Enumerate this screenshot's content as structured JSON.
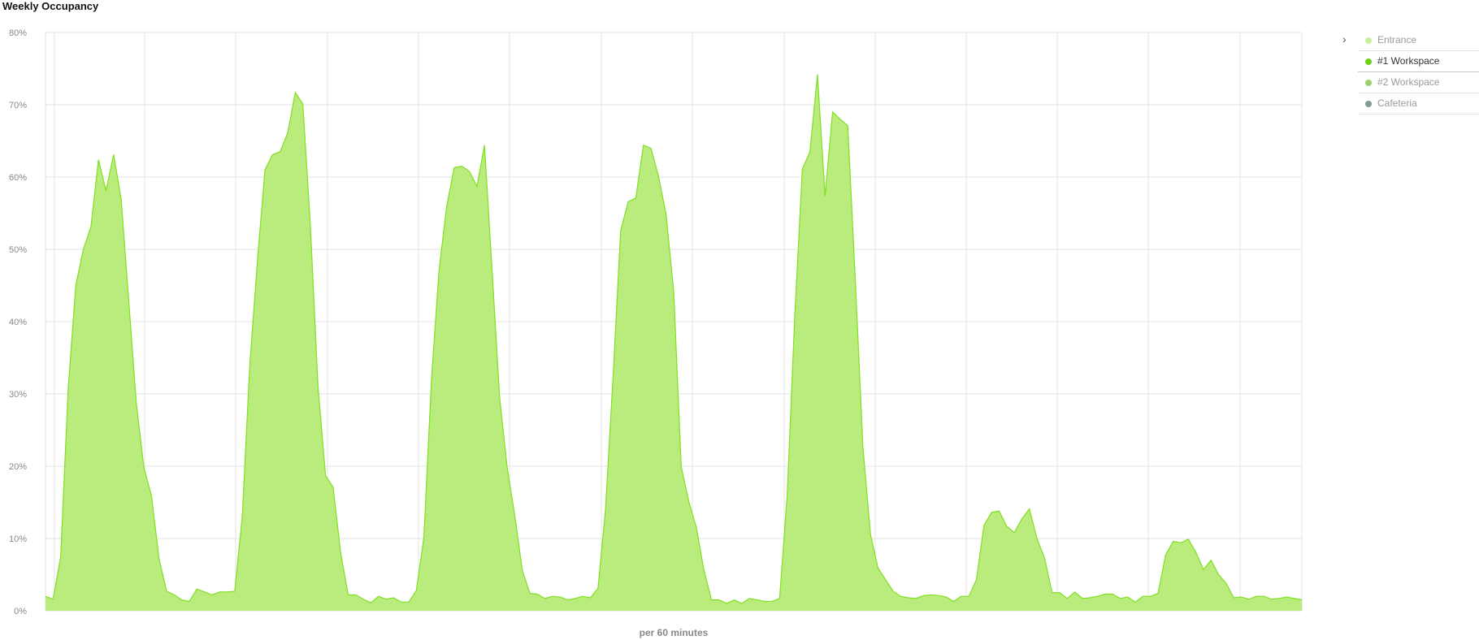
{
  "title": "Weekly Occupancy",
  "legend": {
    "items": [
      {
        "label": "Entrance",
        "color": "#c5ef9c",
        "active": false
      },
      {
        "label": "#1 Workspace",
        "color": "#6dd116",
        "active": true
      },
      {
        "label": "#2 Workspace",
        "color": "#9bd26c",
        "active": false
      },
      {
        "label": "Cafeteria",
        "color": "#879a8c",
        "active": false
      }
    ]
  },
  "chart_data": {
    "type": "area",
    "title": "Weekly Occupancy",
    "xlabel": "per 60 minutes",
    "ylabel": "",
    "ylim": [
      0,
      80
    ],
    "yticks": [
      "0%",
      "10%",
      "20%",
      "30%",
      "40%",
      "50%",
      "60%",
      "70%",
      "80%"
    ],
    "grid": true,
    "legend_position": "top-right",
    "series": [
      {
        "name": "#1 Workspace",
        "color": "#7fe021",
        "fill": "#b9ec7d",
        "values": [
          2.0,
          1.6,
          7.4,
          30.7,
          45.0,
          50.0,
          53.1,
          62.4,
          58.1,
          63.1,
          56.9,
          42.8,
          28.7,
          19.8,
          15.9,
          7.2,
          2.7,
          2.2,
          1.5,
          1.3,
          3.0,
          2.6,
          2.2,
          2.6,
          2.6,
          2.7,
          13.0,
          34.1,
          48.4,
          61.0,
          63.1,
          63.5,
          66.1,
          71.7,
          70.1,
          53.2,
          31.1,
          18.7,
          17.1,
          8.0,
          2.2,
          2.2,
          1.6,
          1.1,
          2.0,
          1.6,
          1.8,
          1.2,
          1.2,
          2.8,
          10.2,
          32.0,
          47.1,
          55.9,
          61.3,
          61.5,
          60.8,
          58.7,
          64.4,
          47.2,
          29.5,
          19.8,
          13.2,
          5.6,
          2.4,
          2.3,
          1.7,
          2.0,
          1.9,
          1.5,
          1.7,
          2.0,
          1.8,
          3.1,
          14.1,
          32.5,
          52.6,
          56.6,
          57.1,
          64.4,
          64.0,
          60.1,
          54.8,
          44.2,
          19.9,
          15.1,
          11.5,
          5.6,
          1.5,
          1.5,
          1.0,
          1.5,
          1.0,
          1.7,
          1.5,
          1.3,
          1.3,
          1.7,
          16.0,
          40.7,
          61.1,
          63.5,
          74.2,
          57.4,
          69.0,
          68.0,
          67.1,
          45.7,
          22.7,
          10.6,
          5.9,
          4.3,
          2.7,
          2.0,
          1.8,
          1.7,
          2.1,
          2.2,
          2.1,
          1.9,
          1.3,
          2.0,
          2.0,
          4.3,
          11.8,
          13.6,
          13.8,
          11.7,
          10.8,
          12.7,
          14.1,
          10.0,
          7.3,
          2.5,
          2.5,
          1.7,
          2.6,
          1.7,
          1.8,
          2.0,
          2.3,
          2.3,
          1.7,
          1.9,
          1.2,
          2.0,
          2.0,
          2.4,
          7.7,
          9.6,
          9.4,
          9.9,
          8.1,
          5.7,
          7.0,
          5.0,
          3.8,
          1.8,
          1.9,
          1.6,
          2.0,
          2.0,
          1.6,
          1.7,
          1.9,
          1.7,
          1.5
        ]
      }
    ]
  }
}
